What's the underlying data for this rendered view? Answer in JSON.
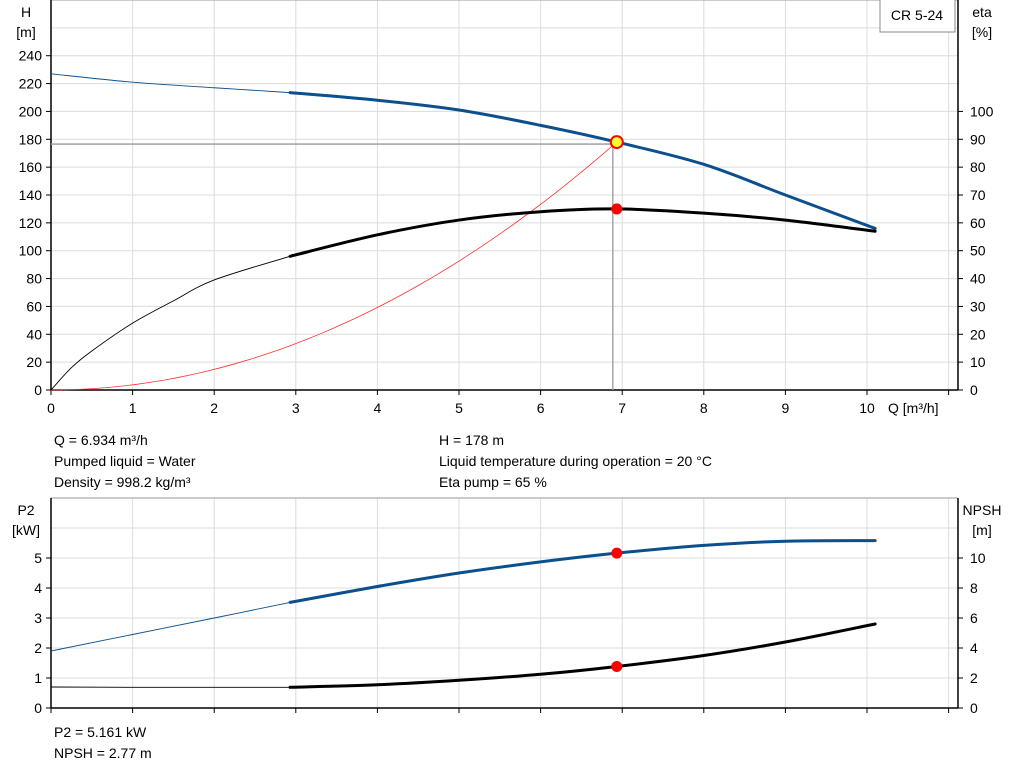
{
  "chart_data": [
    {
      "type": "line",
      "title": "CR 5-24",
      "xlabel": "Q [m³/h]",
      "ylabel_left": [
        "H",
        "[m]"
      ],
      "ylabel_right": [
        "eta",
        "[%]"
      ],
      "xlim": [
        0,
        11
      ],
      "ylim_left": [
        0,
        280
      ],
      "ylim_right": [
        0,
        140
      ],
      "x_ticks": [
        "0",
        "1",
        "2",
        "3",
        "4",
        "5",
        "6",
        "7",
        "8",
        "9",
        "10"
      ],
      "y_ticks_left": [
        "0",
        "20",
        "40",
        "60",
        "80",
        "100",
        "120",
        "140",
        "160",
        "180",
        "200",
        "220",
        "240"
      ],
      "y_ticks_right": [
        "0",
        "10",
        "20",
        "30",
        "40",
        "50",
        "60",
        "70",
        "80",
        "90",
        "100"
      ],
      "grid": true,
      "colors": {
        "head": "#0b4f8c",
        "eta": "#000000",
        "system": "#ff3030",
        "duty_point": "#ffff33",
        "point": "#ff0000"
      },
      "series": [
        {
          "key": "head",
          "axis": "left",
          "thick_from": 2.93,
          "x": [
            0,
            1,
            2,
            2.93,
            4,
            5,
            6,
            6.934,
            8,
            9,
            10.1
          ],
          "y": [
            227,
            221,
            217,
            213.5,
            208,
            201,
            190,
            178,
            162,
            140,
            116
          ]
        },
        {
          "key": "eta",
          "axis": "right",
          "thick_from": 2.93,
          "x": [
            0,
            0.25,
            0.5,
            1,
            1.5,
            2,
            2.93,
            4,
            5,
            6,
            6.934,
            8,
            9,
            10.1
          ],
          "y": [
            0,
            8,
            14,
            24,
            32,
            39.5,
            48,
            55.7,
            61,
            64,
            65,
            63.5,
            61,
            57
          ]
        },
        {
          "key": "system",
          "axis": "left",
          "curve": "quadratic",
          "x_end": 6.934,
          "y_end": 178
        }
      ],
      "duty_point": {
        "Q": 6.934,
        "H": 178,
        "eta": 65
      }
    },
    {
      "type": "line",
      "ylabel_left": [
        "P2",
        "[kW]"
      ],
      "ylabel_right": [
        "NPSH",
        "[m]"
      ],
      "xlim": [
        0,
        11
      ],
      "ylim_left": [
        0,
        7
      ],
      "ylim_right": [
        0,
        14
      ],
      "y_ticks_left": [
        "0",
        "1",
        "2",
        "3",
        "4",
        "5"
      ],
      "y_ticks_right": [
        "0",
        "2",
        "4",
        "6",
        "8",
        "10"
      ],
      "grid": true,
      "colors": {
        "p2": "#0b4f8c",
        "npsh": "#000000",
        "point": "#ff0000"
      },
      "series": [
        {
          "key": "p2",
          "axis": "left",
          "thick_from": 2.93,
          "x": [
            0,
            1,
            2,
            2.93,
            4,
            5,
            6,
            6.934,
            8,
            9,
            10.1
          ],
          "y": [
            1.9,
            2.45,
            3.0,
            3.52,
            4.05,
            4.5,
            4.87,
            5.161,
            5.42,
            5.56,
            5.58
          ]
        },
        {
          "key": "npsh",
          "axis": "right",
          "thick_from": 2.93,
          "x": [
            0,
            1,
            2,
            2.93,
            4,
            5,
            6,
            6.934,
            8,
            9,
            10.1
          ],
          "y": [
            1.4,
            1.38,
            1.38,
            1.38,
            1.55,
            1.85,
            2.25,
            2.77,
            3.5,
            4.4,
            5.6
          ]
        }
      ],
      "duty_point": {
        "Q": 6.934,
        "P2": 5.161,
        "NPSH": 2.77
      }
    }
  ],
  "info_top": {
    "q": "Q = 6.934 m³/h",
    "liquid": "Pumped liquid = Water",
    "density": "Density = 998.2 kg/m³",
    "h": "H = 178 m",
    "temp": "Liquid temperature during operation = 20 °C",
    "eta": "Eta pump = 65 %"
  },
  "info_bottom": {
    "p2": "P2 = 5.161 kW",
    "npsh": "NPSH = 2.77 m"
  }
}
